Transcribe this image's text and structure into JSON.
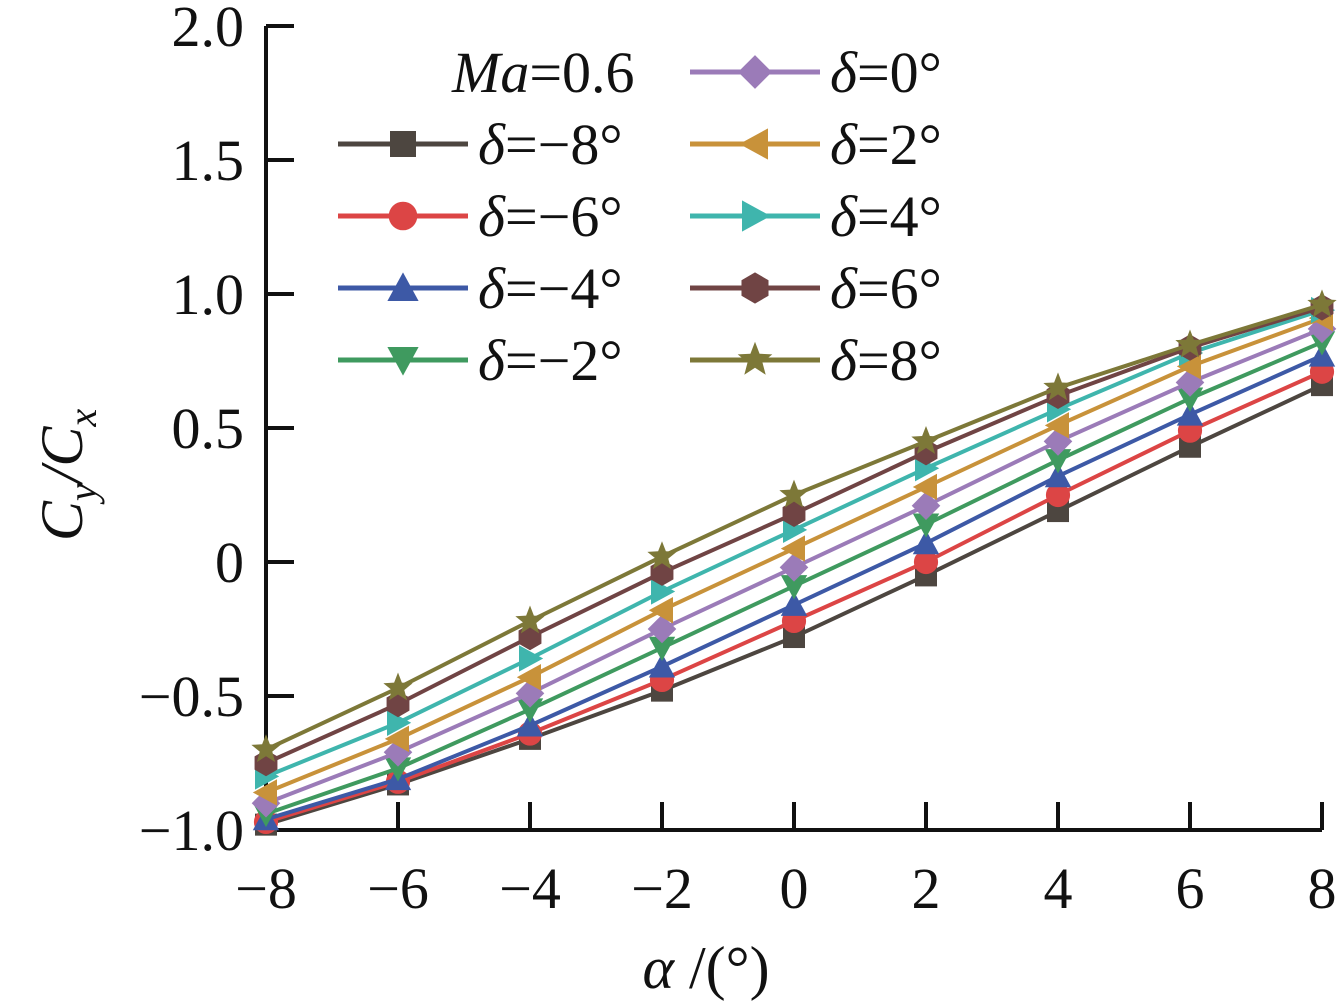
{
  "chart_data": {
    "type": "line",
    "x": [
      -8,
      -6,
      -4,
      -2,
      0,
      2,
      4,
      6,
      8
    ],
    "xlabel_symbol": "α",
    "xlabel_unit": " /(°)",
    "ylabel_main": "C",
    "ylabel_sub1": "y",
    "ylabel_slash": "/C",
    "ylabel_sub2": "x",
    "xlim": [
      -8,
      8
    ],
    "ylim": [
      -1.0,
      2.0
    ],
    "x_ticks": [
      -8,
      -6,
      -4,
      -2,
      0,
      2,
      4,
      6,
      8
    ],
    "x_tick_labels": [
      "−8",
      "−6",
      "−4",
      "−2",
      "0",
      "2",
      "4",
      "6",
      "8"
    ],
    "y_ticks": [
      -1.0,
      -0.5,
      0,
      0.5,
      1.0,
      1.5,
      2.0
    ],
    "y_tick_labels": [
      "−1.0",
      "−0.5",
      "0",
      "0.5",
      "1.0",
      "1.5",
      "2.0"
    ],
    "grid": false,
    "legend_placement": "top-left",
    "legend_title_italic": "Ma",
    "legend_title_rest": "=0.6",
    "legend_prefix": "δ",
    "series": [
      {
        "name": "=−8°",
        "color": "#4d4640",
        "marker": "square",
        "values": [
          -0.98,
          -0.83,
          -0.66,
          -0.48,
          -0.28,
          -0.05,
          0.19,
          0.43,
          0.66
        ]
      },
      {
        "name": "=−6°",
        "color": "#dc4545",
        "marker": "circle",
        "values": [
          -0.97,
          -0.82,
          -0.64,
          -0.44,
          -0.22,
          0.0,
          0.25,
          0.49,
          0.71
        ]
      },
      {
        "name": "=−4°",
        "color": "#3d59a6",
        "marker": "triangle-up",
        "values": [
          -0.96,
          -0.81,
          -0.61,
          -0.39,
          -0.16,
          0.07,
          0.32,
          0.55,
          0.77
        ]
      },
      {
        "name": "=−2°",
        "color": "#3f9a5f",
        "marker": "triangle-down",
        "values": [
          -0.94,
          -0.77,
          -0.55,
          -0.32,
          -0.09,
          0.14,
          0.38,
          0.61,
          0.82
        ]
      },
      {
        "name": "=0°",
        "color": "#9b7bb8",
        "marker": "diamond",
        "values": [
          -0.9,
          -0.71,
          -0.49,
          -0.25,
          -0.02,
          0.21,
          0.45,
          0.67,
          0.87
        ]
      },
      {
        "name": "=2°",
        "color": "#c8923a",
        "marker": "triangle-left",
        "values": [
          -0.86,
          -0.66,
          -0.43,
          -0.18,
          0.05,
          0.28,
          0.51,
          0.73,
          0.91
        ]
      },
      {
        "name": "=4°",
        "color": "#3fb5ad",
        "marker": "triangle-right",
        "values": [
          -0.8,
          -0.6,
          -0.36,
          -0.11,
          0.12,
          0.35,
          0.57,
          0.78,
          0.94
        ]
      },
      {
        "name": "=6°",
        "color": "#704444",
        "marker": "hexagon",
        "values": [
          -0.75,
          -0.53,
          -0.28,
          -0.04,
          0.18,
          0.41,
          0.62,
          0.8,
          0.95
        ]
      },
      {
        "name": "=8°",
        "color": "#7d7838",
        "marker": "star",
        "values": [
          -0.7,
          -0.47,
          -0.22,
          0.02,
          0.25,
          0.45,
          0.65,
          0.81,
          0.96
        ]
      }
    ]
  }
}
